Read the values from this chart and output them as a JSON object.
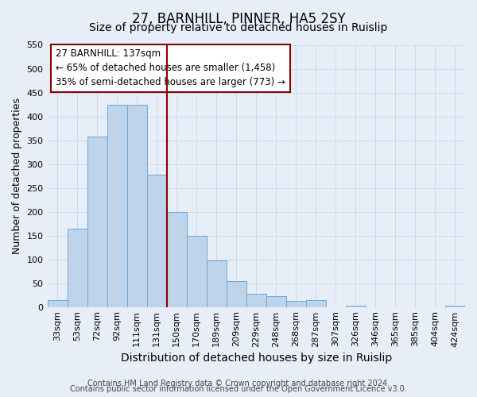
{
  "title": "27, BARNHILL, PINNER, HA5 2SY",
  "subtitle": "Size of property relative to detached houses in Ruislip",
  "xlabel": "Distribution of detached houses by size in Ruislip",
  "ylabel": "Number of detached properties",
  "footnote1": "Contains HM Land Registry data © Crown copyright and database right 2024.",
  "footnote2": "Contains public sector information licensed under the Open Government Licence v3.0.",
  "bar_labels": [
    "33sqm",
    "53sqm",
    "72sqm",
    "92sqm",
    "111sqm",
    "131sqm",
    "150sqm",
    "170sqm",
    "189sqm",
    "209sqm",
    "229sqm",
    "248sqm",
    "268sqm",
    "287sqm",
    "307sqm",
    "326sqm",
    "346sqm",
    "365sqm",
    "385sqm",
    "404sqm",
    "424sqm"
  ],
  "bar_values": [
    15,
    165,
    357,
    425,
    425,
    277,
    200,
    150,
    97,
    55,
    28,
    22,
    13,
    15,
    0,
    2,
    0,
    0,
    0,
    0,
    2
  ],
  "bar_color": "#bdd4eb",
  "bar_edge_color": "#6fa8d6",
  "vline_x": 5.5,
  "vline_color": "#8b0000",
  "annotation_line1": "27 BARNHILL: 137sqm",
  "annotation_line2": "← 65% of detached houses are smaller (1,458)",
  "annotation_line3": "35% of semi-detached houses are larger (773) →",
  "annotation_box_color": "#ffffff",
  "annotation_box_edge": "#8b0000",
  "ylim": [
    0,
    550
  ],
  "yticks": [
    0,
    50,
    100,
    150,
    200,
    250,
    300,
    350,
    400,
    450,
    500,
    550
  ],
  "grid_color": "#c8d8ec",
  "bg_color": "#e8eef8",
  "title_fontsize": 12,
  "subtitle_fontsize": 10,
  "xlabel_fontsize": 10,
  "ylabel_fontsize": 9,
  "tick_fontsize": 8,
  "annotation_fontsize": 8.5,
  "footnote_fontsize": 7
}
